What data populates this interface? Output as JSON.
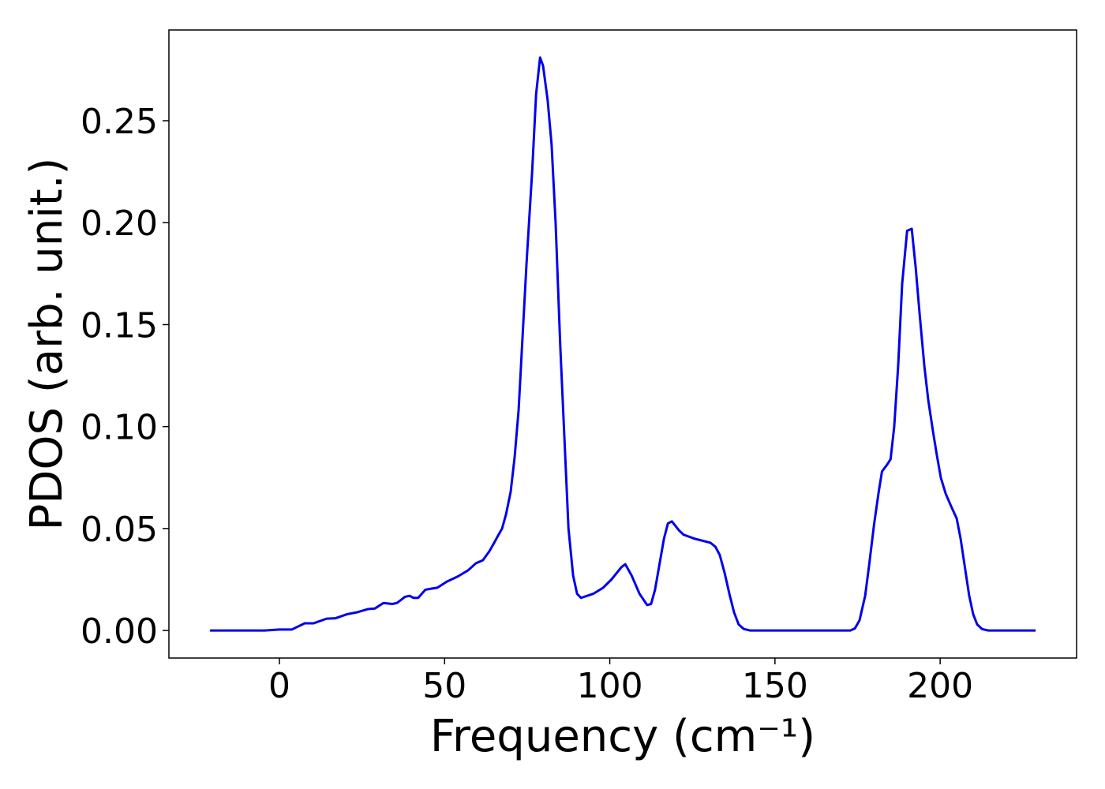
{
  "chart_data": {
    "type": "line",
    "xlabel": "Frequency (cm⁻¹)",
    "ylabel": "PDOS (arb. unit.)",
    "x": [
      -21,
      -4.5,
      0,
      3.8,
      5.7,
      7.6,
      10.3,
      12,
      14.3,
      17,
      20.5,
      23.7,
      26.8,
      28.9,
      31.5,
      34.2,
      35.6,
      38,
      39.4,
      40.6,
      42,
      44.2,
      45.9,
      47.8,
      50.7,
      54,
      57.1,
      59.5,
      61.6,
      63.6,
      65,
      66,
      67.4,
      68.6,
      70,
      71.2,
      72.4,
      73.4,
      74.8,
      76.5,
      77.7,
      78.9,
      79.8,
      81.2,
      82.4,
      83.6,
      85,
      87.5,
      88.9,
      90.1,
      91.3,
      95,
      98,
      100.5,
      103.5,
      104.7,
      106.6,
      109,
      111.3,
      112.5,
      113.7,
      116.4,
      117.6,
      118.8,
      121,
      122.3,
      125.7,
      130.5,
      132,
      133.3,
      134.8,
      136.2,
      137.6,
      139,
      140.5,
      142.4,
      172.8,
      174.2,
      175.6,
      177.3,
      178.5,
      180,
      181.4,
      182.4,
      183.8,
      185,
      186.1,
      187.3,
      188.5,
      190,
      191.4,
      192.6,
      193.8,
      195.2,
      196.4,
      197.8,
      199,
      200.2,
      201.7,
      203.3,
      205,
      206.2,
      207.4,
      208.8,
      210,
      211.2,
      212.7,
      214.6,
      228.9
    ],
    "series": [
      {
        "name": "PDOS",
        "color": "#0000ee",
        "values": [
          0,
          0,
          0.0005,
          0.0005,
          0.002,
          0.0035,
          0.0035,
          0.0045,
          0.0058,
          0.006,
          0.008,
          0.009,
          0.0105,
          0.0108,
          0.0135,
          0.013,
          0.0135,
          0.0165,
          0.017,
          0.016,
          0.016,
          0.02,
          0.0205,
          0.021,
          0.024,
          0.0265,
          0.0295,
          0.033,
          0.0345,
          0.039,
          0.043,
          0.046,
          0.05,
          0.057,
          0.068,
          0.085,
          0.108,
          0.138,
          0.18,
          0.225,
          0.263,
          0.281,
          0.277,
          0.26,
          0.238,
          0.2,
          0.14,
          0.05,
          0.027,
          0.018,
          0.016,
          0.018,
          0.021,
          0.025,
          0.031,
          0.0325,
          0.027,
          0.018,
          0.0125,
          0.013,
          0.02,
          0.045,
          0.0525,
          0.0535,
          0.049,
          0.047,
          0.045,
          0.043,
          0.041,
          0.037,
          0.028,
          0.018,
          0.009,
          0.003,
          0.0008,
          0,
          0,
          0.001,
          0.005,
          0.017,
          0.032,
          0.052,
          0.068,
          0.078,
          0.081,
          0.084,
          0.1,
          0.13,
          0.17,
          0.196,
          0.197,
          0.178,
          0.155,
          0.13,
          0.113,
          0.098,
          0.086,
          0.075,
          0.067,
          0.061,
          0.055,
          0.045,
          0.032,
          0.017,
          0.008,
          0.003,
          0.0007,
          0,
          0
        ]
      }
    ],
    "xlim": [
      -33.45,
      241.3
    ],
    "ylim": [
      -0.0135,
      0.2945
    ],
    "xticks": [
      0,
      50,
      100,
      150,
      200
    ],
    "yticks": [
      {
        "value": 0,
        "label": "0.00"
      },
      {
        "value": 0.05,
        "label": "0.05"
      },
      {
        "value": 0.1,
        "label": "0.10"
      },
      {
        "value": 0.15,
        "label": "0.15"
      },
      {
        "value": 0.2,
        "label": "0.20"
      },
      {
        "value": 0.25,
        "label": "0.25"
      }
    ],
    "grid": false
  }
}
